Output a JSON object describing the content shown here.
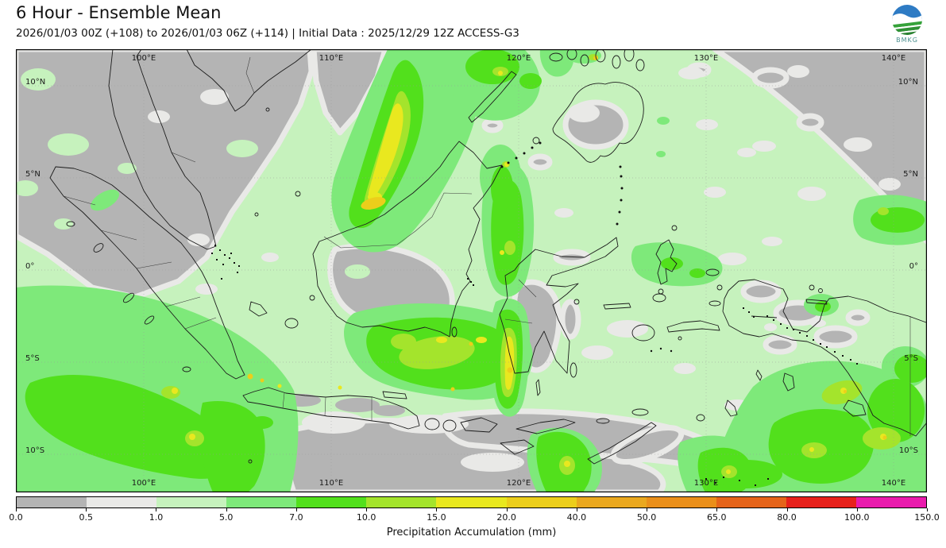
{
  "header": {
    "title": "6 Hour - Ensemble Mean",
    "subtitle": "2026/01/03 00Z (+108) to 2026/01/03 06Z (+114) | Initial Data : 2025/12/29 12Z ACCESS-G3",
    "logo_text": "BMKG"
  },
  "map": {
    "lon_labels": [
      "100°E",
      "110°E",
      "120°E",
      "130°E",
      "140°E"
    ],
    "lat_labels": [
      "10°N",
      "5°N",
      "0°",
      "5°S",
      "10°S"
    ],
    "palette": {
      "dry_gray": "#b4b4b4",
      "trace_white": "#e9e9e7",
      "rain_pale_green": "#c6f2bd",
      "rain_light_green": "#7ee97a",
      "rain_green": "#52e01c",
      "rain_yellow_green": "#a4e42c",
      "rain_yellow": "#e9e81f",
      "rain_gold": "#ecce1b",
      "coastline": "#1c1c1c",
      "gridline": "#9a9a9a"
    }
  },
  "colorbar": {
    "label": "Precipitation Accumulation (mm)",
    "ticks": [
      "0.0",
      "0.5",
      "1.0",
      "5.0",
      "7.0",
      "10.0",
      "15.0",
      "20.0",
      "40.0",
      "50.0",
      "65.0",
      "80.0",
      "100.0",
      "150.0"
    ],
    "colors": [
      "#b4b4b4",
      "#e9e9e7",
      "#c6f2bd",
      "#7ee97a",
      "#52e01c",
      "#a4e42c",
      "#e9e81f",
      "#ecce1b",
      "#eaa81f",
      "#ea8f1a",
      "#e5641a",
      "#e7211b",
      "#e91bad"
    ]
  },
  "chart_data": {
    "type": "heatmap",
    "title": "6 Hour - Ensemble Mean",
    "subtitle": "2026/01/03 00Z (+108) to 2026/01/03 06Z (+114) | Initial Data : 2025/12/29 12Z ACCESS-G3",
    "colorbar_label": "Precipitation Accumulation (mm)",
    "colorbar_ticks_mm": [
      0.0,
      0.5,
      1.0,
      5.0,
      7.0,
      10.0,
      15.0,
      20.0,
      40.0,
      50.0,
      65.0,
      80.0,
      100.0,
      150.0
    ],
    "colorbar_colors": [
      "#b4b4b4",
      "#e9e9e7",
      "#c6f2bd",
      "#7ee97a",
      "#52e01c",
      "#a4e42c",
      "#e9e81f",
      "#ecce1b",
      "#eaa81f",
      "#ea8f1a",
      "#e5641a",
      "#e7211b",
      "#e91bad"
    ],
    "x_tick_labels": [
      "100°E",
      "110°E",
      "120°E",
      "130°E",
      "140°E"
    ],
    "y_tick_labels": [
      "10°N",
      "5°N",
      "0°",
      "5°S",
      "10°S"
    ],
    "legend_position": "bottom",
    "grid": true
  }
}
